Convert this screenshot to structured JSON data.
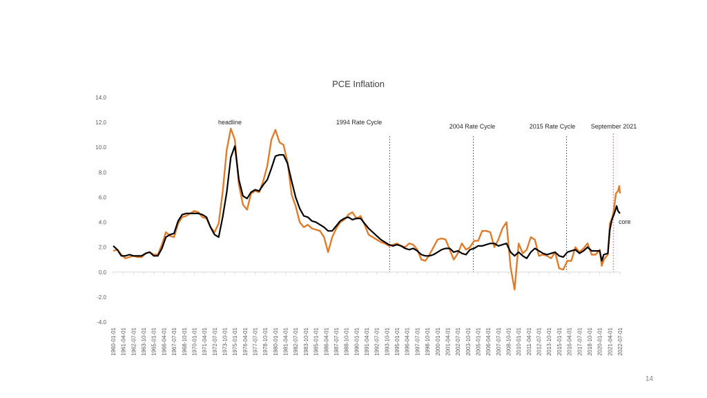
{
  "page_number": "14",
  "chart_data": {
    "type": "line",
    "title": "PCE Inflation",
    "xlabel": "",
    "ylabel": "",
    "ylim": [
      -4.0,
      14.0
    ],
    "y_ticks": [
      "14.0",
      "12.0",
      "10.0",
      "8.0",
      "6.0",
      "4.0",
      "2.0",
      "0.0",
      "-2.0",
      "-4.0"
    ],
    "y_tick_values": [
      14,
      12,
      10,
      8,
      6,
      4,
      2,
      0,
      -2,
      -4
    ],
    "x_range": [
      "1960-01-01",
      "2022-07-01"
    ],
    "x_ticks": [
      "1960-01-01",
      "1961-04-01",
      "1962-07-01",
      "1963-10-01",
      "1965-01-01",
      "1966-04-01",
      "1967-07-01",
      "1968-10-01",
      "1970-01-01",
      "1971-04-01",
      "1972-07-01",
      "1973-10-01",
      "1975-01-01",
      "1976-04-01",
      "1977-07-01",
      "1978-10-01",
      "1980-01-01",
      "1981-04-01",
      "1982-07-01",
      "1983-10-01",
      "1985-01-01",
      "1986-04-01",
      "1987-07-01",
      "1988-10-01",
      "1990-01-01",
      "1991-04-01",
      "1992-07-01",
      "1993-10-01",
      "1995-01-01",
      "1996-04-01",
      "1997-07-01",
      "1998-10-01",
      "2000-01-01",
      "2001-04-01",
      "2002-07-01",
      "2003-10-01",
      "2005-01-01",
      "2006-04-01",
      "2007-07-01",
      "2008-10-01",
      "2010-01-01",
      "2011-04-01",
      "2012-07-01",
      "2013-10-01",
      "2015-01-01",
      "2016-04-01",
      "2017-07-01",
      "2018-10-01",
      "2020-01-01",
      "2021-04-01",
      "2022-07-01"
    ],
    "grid": false,
    "legend": "none",
    "series": [
      {
        "name": "headline",
        "color": "#e07b2a",
        "points": [
          [
            "1960-01-01",
            1.7
          ],
          [
            "1960-07-01",
            1.8
          ],
          [
            "1961-01-01",
            1.4
          ],
          [
            "1961-07-01",
            1.1
          ],
          [
            "1962-01-01",
            1.2
          ],
          [
            "1962-07-01",
            1.3
          ],
          [
            "1963-01-01",
            1.2
          ],
          [
            "1963-07-01",
            1.2
          ],
          [
            "1964-01-01",
            1.5
          ],
          [
            "1964-07-01",
            1.6
          ],
          [
            "1965-01-01",
            1.4
          ],
          [
            "1965-07-01",
            1.4
          ],
          [
            "1966-01-01",
            2.2
          ],
          [
            "1966-07-01",
            3.2
          ],
          [
            "1967-01-01",
            2.9
          ],
          [
            "1967-07-01",
            2.8
          ],
          [
            "1968-01-01",
            3.9
          ],
          [
            "1968-07-01",
            4.4
          ],
          [
            "1969-01-01",
            4.5
          ],
          [
            "1969-07-01",
            4.7
          ],
          [
            "1970-01-01",
            4.9
          ],
          [
            "1970-07-01",
            4.8
          ],
          [
            "1971-01-01",
            4.4
          ],
          [
            "1971-07-01",
            4.3
          ],
          [
            "1972-01-01",
            3.6
          ],
          [
            "1972-07-01",
            3.2
          ],
          [
            "1973-01-01",
            3.9
          ],
          [
            "1973-07-01",
            6.4
          ],
          [
            "1974-01-01",
            9.8
          ],
          [
            "1974-07-01",
            11.5
          ],
          [
            "1975-01-01",
            10.6
          ],
          [
            "1975-07-01",
            7.0
          ],
          [
            "1976-01-01",
            5.4
          ],
          [
            "1976-07-01",
            5.0
          ],
          [
            "1977-01-01",
            6.3
          ],
          [
            "1977-07-01",
            6.5
          ],
          [
            "1978-01-01",
            6.4
          ],
          [
            "1978-07-01",
            7.3
          ],
          [
            "1979-01-01",
            8.5
          ],
          [
            "1979-07-01",
            10.6
          ],
          [
            "1980-01-01",
            11.4
          ],
          [
            "1980-07-01",
            10.4
          ],
          [
            "1981-01-01",
            10.2
          ],
          [
            "1981-07-01",
            8.8
          ],
          [
            "1982-01-01",
            6.2
          ],
          [
            "1982-07-01",
            5.3
          ],
          [
            "1983-01-01",
            4.0
          ],
          [
            "1983-07-01",
            3.6
          ],
          [
            "1984-01-01",
            3.8
          ],
          [
            "1984-07-01",
            3.5
          ],
          [
            "1985-01-01",
            3.4
          ],
          [
            "1985-07-01",
            3.3
          ],
          [
            "1986-01-01",
            2.8
          ],
          [
            "1986-07-01",
            1.6
          ],
          [
            "1987-01-01",
            2.8
          ],
          [
            "1987-07-01",
            3.5
          ],
          [
            "1988-01-01",
            4.0
          ],
          [
            "1988-07-01",
            4.2
          ],
          [
            "1989-01-01",
            4.6
          ],
          [
            "1989-07-01",
            4.8
          ],
          [
            "1990-01-01",
            4.3
          ],
          [
            "1990-07-01",
            4.5
          ],
          [
            "1991-01-01",
            3.8
          ],
          [
            "1991-07-01",
            3.0
          ],
          [
            "1992-01-01",
            2.8
          ],
          [
            "1992-07-01",
            2.6
          ],
          [
            "1993-01-01",
            2.4
          ],
          [
            "1993-07-01",
            2.3
          ],
          [
            "1994-01-01",
            2.1
          ],
          [
            "1994-07-01",
            2.2
          ],
          [
            "1995-01-01",
            2.3
          ],
          [
            "1995-07-01",
            2.1
          ],
          [
            "1996-01-01",
            2.0
          ],
          [
            "1996-07-01",
            2.3
          ],
          [
            "1997-01-01",
            2.2
          ],
          [
            "1997-07-01",
            1.8
          ],
          [
            "1998-01-01",
            1.0
          ],
          [
            "1998-07-01",
            0.9
          ],
          [
            "1999-01-01",
            1.4
          ],
          [
            "1999-07-01",
            2.0
          ],
          [
            "2000-01-01",
            2.6
          ],
          [
            "2000-07-01",
            2.7
          ],
          [
            "2001-01-01",
            2.6
          ],
          [
            "2001-07-01",
            1.8
          ],
          [
            "2002-01-01",
            1.0
          ],
          [
            "2002-07-01",
            1.5
          ],
          [
            "2003-01-01",
            2.3
          ],
          [
            "2003-07-01",
            1.8
          ],
          [
            "2004-01-01",
            2.0
          ],
          [
            "2004-07-01",
            2.5
          ],
          [
            "2005-01-01",
            2.5
          ],
          [
            "2005-07-01",
            3.3
          ],
          [
            "2006-01-01",
            3.3
          ],
          [
            "2006-07-01",
            3.2
          ],
          [
            "2007-01-01",
            2.0
          ],
          [
            "2007-07-01",
            2.6
          ],
          [
            "2008-01-01",
            3.5
          ],
          [
            "2008-07-01",
            4.0
          ],
          [
            "2009-01-01",
            0.4
          ],
          [
            "2009-07-01",
            -1.4
          ],
          [
            "2010-01-01",
            2.3
          ],
          [
            "2010-07-01",
            1.5
          ],
          [
            "2011-01-01",
            1.8
          ],
          [
            "2011-07-01",
            2.8
          ],
          [
            "2012-01-01",
            2.6
          ],
          [
            "2012-07-01",
            1.3
          ],
          [
            "2013-01-01",
            1.4
          ],
          [
            "2013-07-01",
            1.3
          ],
          [
            "2014-01-01",
            1.1
          ],
          [
            "2014-07-01",
            1.6
          ],
          [
            "2015-01-01",
            0.3
          ],
          [
            "2015-07-01",
            0.2
          ],
          [
            "2016-01-01",
            0.9
          ],
          [
            "2016-07-01",
            0.9
          ],
          [
            "2017-01-01",
            2.0
          ],
          [
            "2017-07-01",
            1.6
          ],
          [
            "2018-01-01",
            1.9
          ],
          [
            "2018-07-01",
            2.3
          ],
          [
            "2019-01-01",
            1.4
          ],
          [
            "2019-07-01",
            1.4
          ],
          [
            "2020-01-01",
            1.8
          ],
          [
            "2020-04-01",
            0.5
          ],
          [
            "2020-07-01",
            1.0
          ],
          [
            "2021-01-01",
            1.4
          ],
          [
            "2021-04-01",
            3.9
          ],
          [
            "2021-07-01",
            4.3
          ],
          [
            "2021-10-01",
            5.0
          ],
          [
            "2022-01-01",
            6.3
          ],
          [
            "2022-04-01",
            6.5
          ],
          [
            "2022-06-01",
            6.9
          ],
          [
            "2022-07-01",
            6.3
          ]
        ]
      },
      {
        "name": "core",
        "color": "#000000",
        "points": [
          [
            "1960-01-01",
            2.1
          ],
          [
            "1960-07-01",
            1.8
          ],
          [
            "1961-01-01",
            1.3
          ],
          [
            "1961-07-01",
            1.3
          ],
          [
            "1962-01-01",
            1.4
          ],
          [
            "1962-07-01",
            1.3
          ],
          [
            "1963-01-01",
            1.3
          ],
          [
            "1963-07-01",
            1.3
          ],
          [
            "1964-01-01",
            1.5
          ],
          [
            "1964-07-01",
            1.6
          ],
          [
            "1965-01-01",
            1.3
          ],
          [
            "1965-07-01",
            1.3
          ],
          [
            "1966-01-01",
            1.9
          ],
          [
            "1966-07-01",
            2.8
          ],
          [
            "1967-01-01",
            3.0
          ],
          [
            "1967-07-01",
            3.1
          ],
          [
            "1968-01-01",
            4.1
          ],
          [
            "1968-07-01",
            4.6
          ],
          [
            "1969-01-01",
            4.7
          ],
          [
            "1969-07-01",
            4.7
          ],
          [
            "1970-01-01",
            4.7
          ],
          [
            "1970-07-01",
            4.7
          ],
          [
            "1971-01-01",
            4.6
          ],
          [
            "1971-07-01",
            4.4
          ],
          [
            "1972-01-01",
            3.6
          ],
          [
            "1972-07-01",
            3.0
          ],
          [
            "1973-01-01",
            2.8
          ],
          [
            "1973-07-01",
            4.4
          ],
          [
            "1974-01-01",
            6.4
          ],
          [
            "1974-07-01",
            9.2
          ],
          [
            "1975-01-01",
            10.1
          ],
          [
            "1975-07-01",
            7.4
          ],
          [
            "1976-01-01",
            6.1
          ],
          [
            "1976-07-01",
            5.9
          ],
          [
            "1977-01-01",
            6.4
          ],
          [
            "1977-07-01",
            6.6
          ],
          [
            "1978-01-01",
            6.5
          ],
          [
            "1978-07-01",
            7.0
          ],
          [
            "1979-01-01",
            7.4
          ],
          [
            "1979-07-01",
            8.3
          ],
          [
            "1980-01-01",
            9.3
          ],
          [
            "1980-07-01",
            9.4
          ],
          [
            "1981-01-01",
            9.4
          ],
          [
            "1981-07-01",
            8.7
          ],
          [
            "1982-01-01",
            7.3
          ],
          [
            "1982-07-01",
            6.0
          ],
          [
            "1983-01-01",
            5.1
          ],
          [
            "1983-07-01",
            4.5
          ],
          [
            "1984-01-01",
            4.4
          ],
          [
            "1984-07-01",
            4.1
          ],
          [
            "1985-01-01",
            4.0
          ],
          [
            "1985-07-01",
            3.8
          ],
          [
            "1986-01-01",
            3.6
          ],
          [
            "1986-07-01",
            3.3
          ],
          [
            "1987-01-01",
            3.3
          ],
          [
            "1987-07-01",
            3.7
          ],
          [
            "1988-01-01",
            4.1
          ],
          [
            "1988-07-01",
            4.3
          ],
          [
            "1989-01-01",
            4.4
          ],
          [
            "1989-07-01",
            4.2
          ],
          [
            "1990-01-01",
            4.3
          ],
          [
            "1990-07-01",
            4.3
          ],
          [
            "1991-01-01",
            3.9
          ],
          [
            "1991-07-01",
            3.5
          ],
          [
            "1992-01-01",
            3.2
          ],
          [
            "1992-07-01",
            2.9
          ],
          [
            "1993-01-01",
            2.6
          ],
          [
            "1993-07-01",
            2.4
          ],
          [
            "1994-01-01",
            2.2
          ],
          [
            "1994-07-01",
            2.1
          ],
          [
            "1995-01-01",
            2.2
          ],
          [
            "1995-07-01",
            2.1
          ],
          [
            "1996-01-01",
            1.9
          ],
          [
            "1996-07-01",
            1.8
          ],
          [
            "1997-01-01",
            1.9
          ],
          [
            "1997-07-01",
            1.7
          ],
          [
            "1998-01-01",
            1.4
          ],
          [
            "1998-07-01",
            1.3
          ],
          [
            "1999-01-01",
            1.3
          ],
          [
            "1999-07-01",
            1.4
          ],
          [
            "2000-01-01",
            1.6
          ],
          [
            "2000-07-01",
            1.8
          ],
          [
            "2001-01-01",
            1.9
          ],
          [
            "2001-07-01",
            1.9
          ],
          [
            "2002-01-01",
            1.6
          ],
          [
            "2002-07-01",
            1.7
          ],
          [
            "2003-01-01",
            1.5
          ],
          [
            "2003-07-01",
            1.4
          ],
          [
            "2004-01-01",
            1.8
          ],
          [
            "2004-07-01",
            1.9
          ],
          [
            "2005-01-01",
            2.1
          ],
          [
            "2005-07-01",
            2.1
          ],
          [
            "2006-01-01",
            2.2
          ],
          [
            "2006-07-01",
            2.3
          ],
          [
            "2007-01-01",
            2.3
          ],
          [
            "2007-07-01",
            2.1
          ],
          [
            "2008-01-01",
            2.2
          ],
          [
            "2008-07-01",
            2.3
          ],
          [
            "2009-01-01",
            1.6
          ],
          [
            "2009-07-01",
            1.3
          ],
          [
            "2010-01-01",
            1.6
          ],
          [
            "2010-07-01",
            1.3
          ],
          [
            "2011-01-01",
            1.1
          ],
          [
            "2011-07-01",
            1.6
          ],
          [
            "2012-01-01",
            1.9
          ],
          [
            "2012-07-01",
            1.7
          ],
          [
            "2013-01-01",
            1.5
          ],
          [
            "2013-07-01",
            1.4
          ],
          [
            "2014-01-01",
            1.5
          ],
          [
            "2014-07-01",
            1.6
          ],
          [
            "2015-01-01",
            1.3
          ],
          [
            "2015-07-01",
            1.2
          ],
          [
            "2016-01-01",
            1.6
          ],
          [
            "2016-07-01",
            1.7
          ],
          [
            "2017-01-01",
            1.8
          ],
          [
            "2017-07-01",
            1.5
          ],
          [
            "2018-01-01",
            1.7
          ],
          [
            "2018-07-01",
            2.0
          ],
          [
            "2019-01-01",
            1.7
          ],
          [
            "2019-07-01",
            1.7
          ],
          [
            "2020-01-01",
            1.7
          ],
          [
            "2020-04-01",
            0.9
          ],
          [
            "2020-07-01",
            1.4
          ],
          [
            "2021-01-01",
            1.5
          ],
          [
            "2021-04-01",
            3.4
          ],
          [
            "2021-07-01",
            4.2
          ],
          [
            "2021-10-01",
            4.6
          ],
          [
            "2022-01-01",
            5.1
          ],
          [
            "2022-02-01",
            5.3
          ],
          [
            "2022-04-01",
            4.9
          ],
          [
            "2022-07-01",
            4.7
          ]
        ]
      }
    ],
    "annotations": [
      {
        "id": "headline",
        "text": "headline"
      },
      {
        "id": "rc1994",
        "text": "1994 Rate Cycle",
        "date": "1994-02-01"
      },
      {
        "id": "rc2004",
        "text": "2004 Rate Cycle",
        "date": "2004-06-01"
      },
      {
        "id": "rc2015",
        "text": "2015 Rate Cycle",
        "date": "2015-12-01"
      },
      {
        "id": "sep2021",
        "text": "September 2021",
        "date": "2021-09-01"
      },
      {
        "id": "core",
        "text": "core"
      }
    ]
  }
}
